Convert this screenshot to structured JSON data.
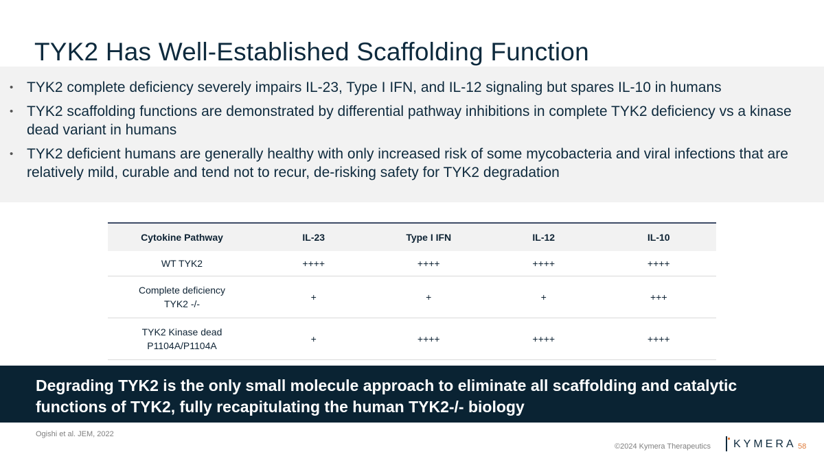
{
  "slide": {
    "title": "TYK2 Has Well-Established Scaffolding Function",
    "bullets": [
      {
        "marker": "•",
        "text": "TYK2 complete deficiency severely impairs IL-23, Type I IFN, and IL-12 signaling but spares IL-10 in humans"
      },
      {
        "marker": "•",
        "text": "TYK2 scaffolding functions are demonstrated by differential pathway inhibitions in complete TYK2 deficiency vs a kinase dead variant in humans"
      },
      {
        "marker": "•",
        "text": "TYK2 deficient humans are generally healthy with only increased risk of some mycobacteria and viral infections that are relatively mild, curable and tend not to recur, de-risking safety for TYK2 degradation"
      }
    ],
    "table": {
      "headers": [
        "Cytokine Pathway",
        "IL-23",
        "Type I IFN",
        "IL-12",
        "IL-10"
      ],
      "rows": [
        {
          "label_line1": "WT TYK2",
          "label_line2": "",
          "values": [
            "++++",
            "++++",
            "++++",
            "++++"
          ]
        },
        {
          "label_line1": "Complete deficiency",
          "label_line2": "TYK2 -/-",
          "values": [
            "+",
            "+",
            "+",
            "+++"
          ]
        },
        {
          "label_line1": "TYK2 Kinase dead",
          "label_line2": "P1104A/P1104A",
          "values": [
            "+",
            "++++",
            "++++",
            "++++"
          ]
        }
      ]
    },
    "banner": "Degrading TYK2 is the only small molecule approach to eliminate all scaffolding and catalytic functions of TYK2, fully recapitulating the human TYK2-/- biology",
    "citation": "Ogishi et al. JEM, 2022",
    "copyright": "©2024 Kymera Therapeutics",
    "logo_text": "KYMERA",
    "page_number": "58",
    "colors": {
      "navy": "#0a2333",
      "accent": "#e07b39",
      "panel": "#f2f2f2"
    }
  }
}
